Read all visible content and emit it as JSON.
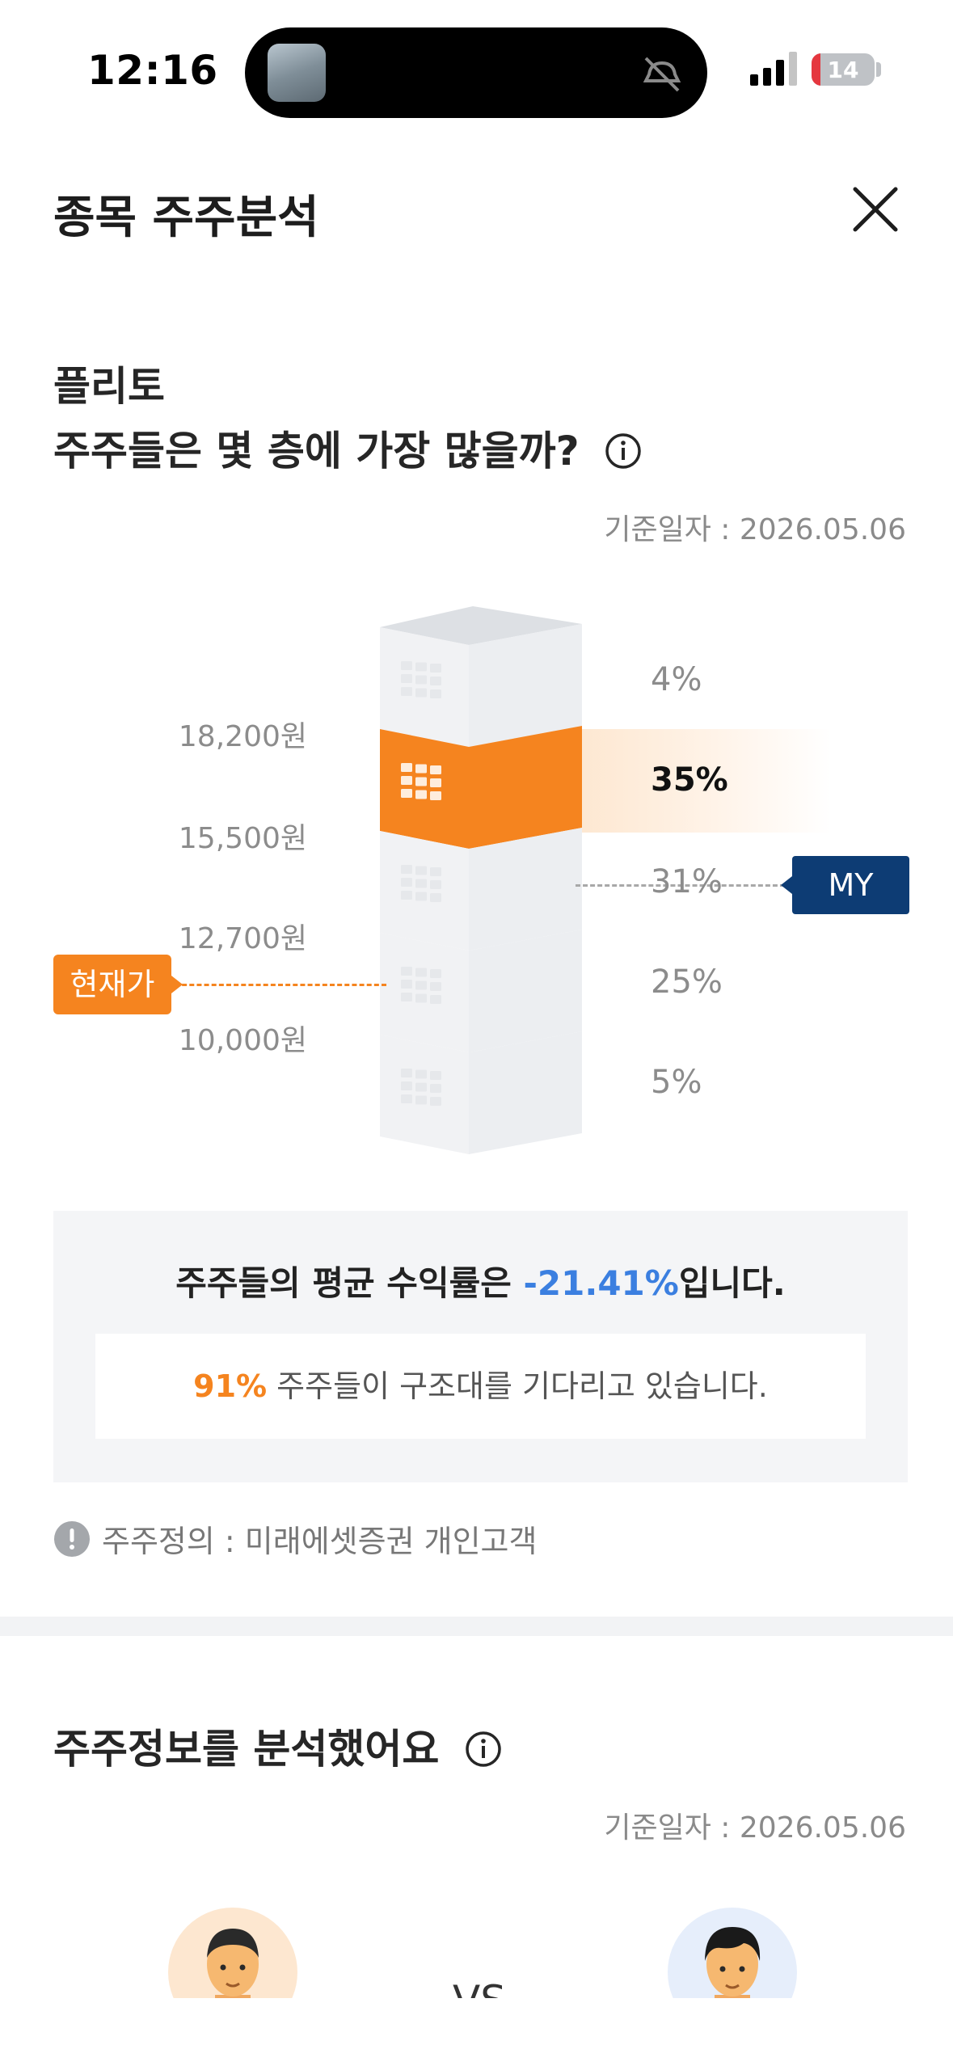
{
  "status_bar": {
    "time": "12:16",
    "battery": "14",
    "battery_level": 0.14,
    "icons": [
      "signal-icon",
      "battery-icon",
      "mute-icon"
    ]
  },
  "header": {
    "title": "종목 주주분석",
    "close_icon": "close-icon"
  },
  "floors_section": {
    "stock_name": "플리토",
    "question": "주주들은 몇 층에 가장 많을까?",
    "date": "기준일자 : 2026.05.06",
    "price_levels": [
      "18,200원",
      "15,500원",
      "12,700원",
      "10,000원"
    ],
    "floors": [
      {
        "pct": "4%",
        "highlight": false
      },
      {
        "pct": "35%",
        "highlight": true
      },
      {
        "pct": "31%",
        "highlight": false
      },
      {
        "pct": "25%",
        "highlight": false
      },
      {
        "pct": "5%",
        "highlight": false
      }
    ],
    "current_price_tag": "현재가",
    "my_tag": "MY",
    "colors": {
      "accent": "#f5841f",
      "my": "#0d3c74",
      "floor": "#eceef1"
    }
  },
  "summary": {
    "main_prefix": "주주들의 평균 수익률은 ",
    "main_value": "-21.41%",
    "main_suffix": "입니다.",
    "sub_value": "91%",
    "sub_text": " 주주들이 구조대를 기다리고 있습니다.",
    "value_color": "#3b7fe0"
  },
  "note": {
    "text": "주주정의 : 미래에셋증권 개인고객",
    "icon": "exclamation-icon"
  },
  "analysis_section": {
    "title": "주주정보를 분석했어요",
    "date": "기준일자 : 2026.05.06",
    "vs": "VS"
  }
}
